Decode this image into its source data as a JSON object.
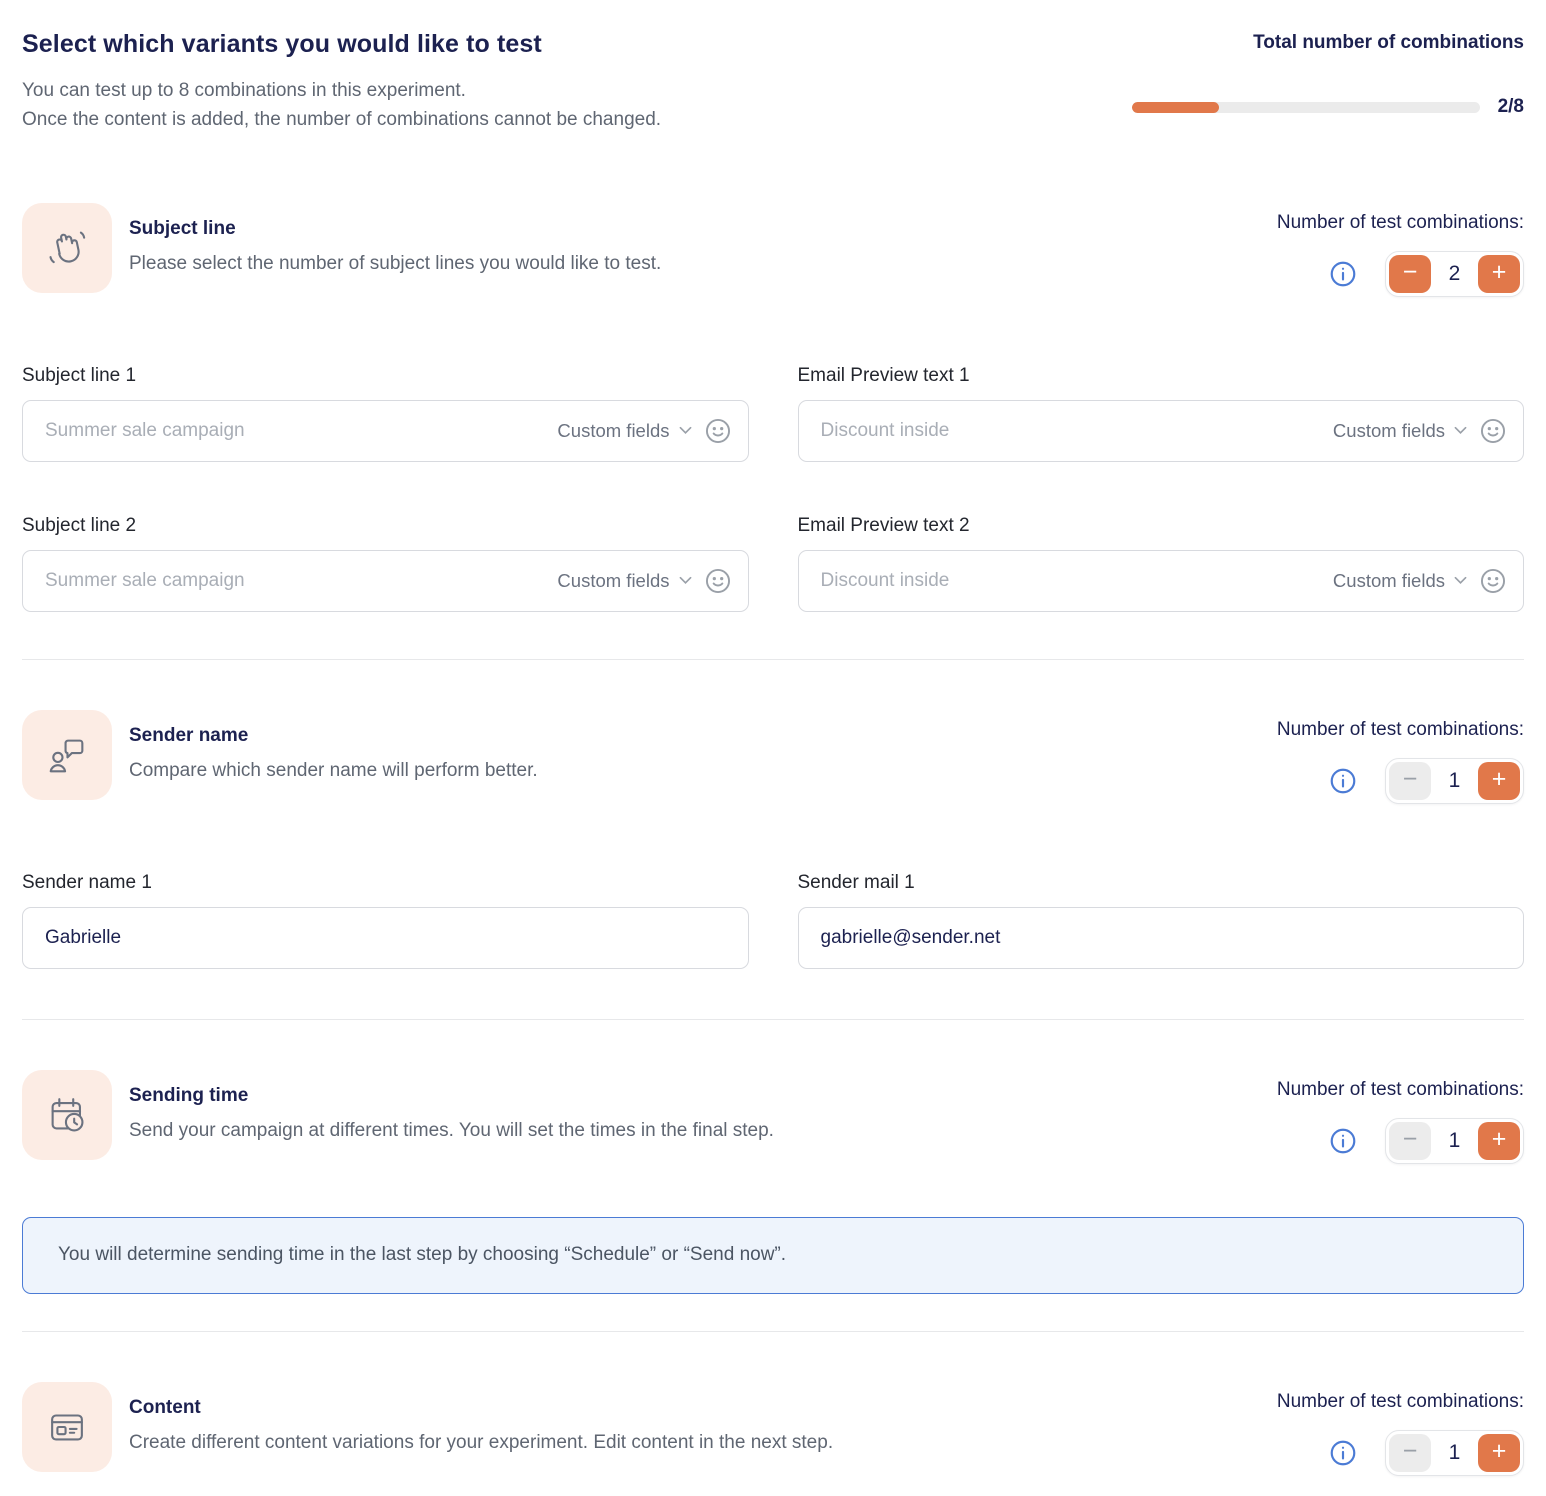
{
  "header": {
    "title": "Select which variants you would like to test",
    "subtitle_line1": "You can test up to 8 combinations in this experiment.",
    "subtitle_line2": "Once the content is added, the number of combinations cannot be changed.",
    "combinations": {
      "label": "Total number of combinations",
      "current": 2,
      "max": 8,
      "display": "2/8"
    }
  },
  "stepper": {
    "label": "Number of test combinations:",
    "minus_glyph": "−",
    "plus_glyph": "+"
  },
  "custom_fields_label": "Custom fields",
  "sections": {
    "subject_line": {
      "title": "Subject line",
      "description": "Please select the number of subject lines you would like to test.",
      "icon": "waving-hand-icon",
      "count": "2"
    },
    "sender_name": {
      "title": "Sender name",
      "description": "Compare which sender name will perform better.",
      "icon": "person-chat-icon",
      "count": "1"
    },
    "sending_time": {
      "title": "Sending time",
      "description": "Send your campaign at different times. You will set the times in the final step.",
      "icon": "calendar-clock-icon",
      "count": "1",
      "notice": "You will determine sending time in the last step by choosing “Schedule” or “Send now”."
    },
    "content": {
      "title": "Content",
      "description": "Create different content variations for your experiment. Edit content in the next step.",
      "icon": "content-layout-icon",
      "count": "1"
    }
  },
  "fields": {
    "subject_line_1": {
      "label": "Subject line 1",
      "placeholder": "Summer sale campaign"
    },
    "email_preview_1": {
      "label": "Email Preview text 1",
      "placeholder": "Discount inside"
    },
    "subject_line_2": {
      "label": "Subject line 2",
      "placeholder": "Summer sale campaign"
    },
    "email_preview_2": {
      "label": "Email Preview text 2",
      "placeholder": "Discount inside"
    },
    "sender_name_1": {
      "label": "Sender name 1",
      "value": "Gabrielle"
    },
    "sender_mail_1": {
      "label": "Sender mail 1",
      "value": "gabrielle@sender.net"
    }
  },
  "colors": {
    "accent_orange": "#E1784A",
    "navy": "#1C2150",
    "info_blue": "#4B7BD5",
    "icon_bg": "#FCECE4",
    "notice_bg": "#EEF4FC"
  }
}
